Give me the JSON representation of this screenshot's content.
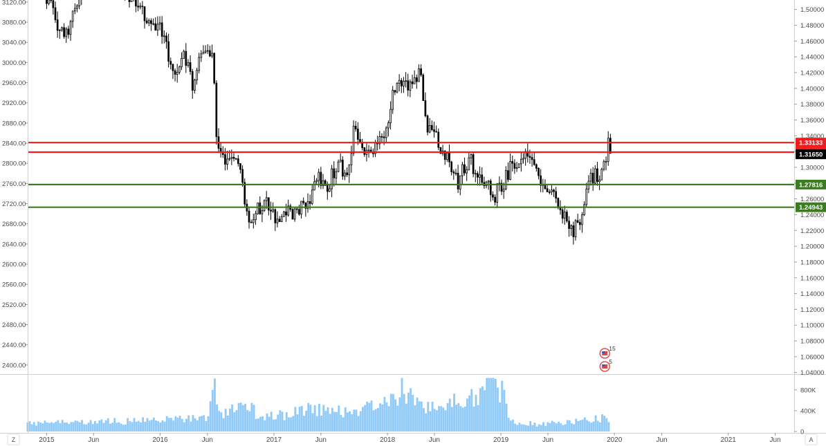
{
  "chart_data": {
    "type": "candlestick",
    "left_axis": {
      "ticks": [
        "3120.00",
        "3080.00",
        "3040.00",
        "3000.00",
        "2960.00",
        "2920.00",
        "2880.00",
        "2840.00",
        "2800.00",
        "2760.00",
        "2720.00",
        "2680.00",
        "2640.00",
        "2600.00",
        "2560.00",
        "2520.00",
        "2480.00",
        "2440.00",
        "2400.00"
      ],
      "range": [
        2382,
        3124
      ]
    },
    "right_axis": {
      "ticks": [
        "1.50000",
        "1.48000",
        "1.46000",
        "1.44000",
        "1.42000",
        "1.40000",
        "1.38000",
        "1.36000",
        "1.34000",
        "1.32000",
        "1.30000",
        "1.28000",
        "1.26000",
        "1.24000",
        "1.22000",
        "1.20000",
        "1.18000",
        "1.16000",
        "1.14000",
        "1.12000",
        "1.10000",
        "1.08000",
        "1.06000",
        "1.04000"
      ],
      "range": [
        1.038,
        1.512
      ]
    },
    "x_axis": {
      "range": [
        "2014-11-01",
        "2021-08-01"
      ],
      "ticks": [
        {
          "label": "2015",
          "date": "2015-01-01"
        },
        {
          "label": "Jun",
          "date": "2015-06-01"
        },
        {
          "label": "2016",
          "date": "2016-01-01"
        },
        {
          "label": "Jun",
          "date": "2016-06-01"
        },
        {
          "label": "2017",
          "date": "2017-01-01"
        },
        {
          "label": "Jun",
          "date": "2017-06-01"
        },
        {
          "label": "2018",
          "date": "2018-01-01"
        },
        {
          "label": "Jun",
          "date": "2018-06-01"
        },
        {
          "label": "2019",
          "date": "2019-01-01"
        },
        {
          "label": "Jun",
          "date": "2019-06-01"
        },
        {
          "label": "2020",
          "date": "2020-01-01"
        },
        {
          "label": "Jun",
          "date": "2020-06-01"
        },
        {
          "label": "2021",
          "date": "2021-01-01"
        },
        {
          "label": "Jun",
          "date": "2021-06-01"
        }
      ]
    },
    "price_path": [
      {
        "date": "2015-01-01",
        "close": 1.512
      },
      {
        "date": "2015-02-15",
        "close": 1.475
      },
      {
        "date": "2015-03-10",
        "close": 1.468
      },
      {
        "date": "2015-04-05",
        "close": 1.505
      },
      {
        "date": "2015-05-10",
        "close": 1.55
      },
      {
        "date": "2015-07-01",
        "close": 1.565
      },
      {
        "date": "2015-09-01",
        "close": 1.53
      },
      {
        "date": "2015-11-15",
        "close": 1.495
      },
      {
        "date": "2016-01-01",
        "close": 1.478
      },
      {
        "date": "2016-02-10",
        "close": 1.425
      },
      {
        "date": "2016-03-20",
        "close": 1.44
      },
      {
        "date": "2016-04-15",
        "close": 1.405
      },
      {
        "date": "2016-05-20",
        "close": 1.455
      },
      {
        "date": "2016-06-20",
        "close": 1.445
      },
      {
        "date": "2016-06-30",
        "close": 1.33
      },
      {
        "date": "2016-07-20",
        "close": 1.305
      },
      {
        "date": "2016-08-20",
        "close": 1.31
      },
      {
        "date": "2016-09-20",
        "close": 1.285
      },
      {
        "date": "2016-10-10",
        "close": 1.225
      },
      {
        "date": "2016-11-10",
        "close": 1.245
      },
      {
        "date": "2016-12-10",
        "close": 1.255
      },
      {
        "date": "2017-01-10",
        "close": 1.225
      },
      {
        "date": "2017-02-15",
        "close": 1.245
      },
      {
        "date": "2017-03-15",
        "close": 1.24
      },
      {
        "date": "2017-04-20",
        "close": 1.255
      },
      {
        "date": "2017-05-15",
        "close": 1.29
      },
      {
        "date": "2017-06-20",
        "close": 1.27
      },
      {
        "date": "2017-07-20",
        "close": 1.305
      },
      {
        "date": "2017-08-20",
        "close": 1.29
      },
      {
        "date": "2017-09-20",
        "close": 1.355
      },
      {
        "date": "2017-10-20",
        "close": 1.32
      },
      {
        "date": "2017-11-20",
        "close": 1.325
      },
      {
        "date": "2017-12-20",
        "close": 1.34
      },
      {
        "date": "2018-01-20",
        "close": 1.39
      },
      {
        "date": "2018-02-15",
        "close": 1.41
      },
      {
        "date": "2018-03-10",
        "close": 1.395
      },
      {
        "date": "2018-04-15",
        "close": 1.425
      },
      {
        "date": "2018-05-10",
        "close": 1.355
      },
      {
        "date": "2018-06-10",
        "close": 1.335
      },
      {
        "date": "2018-07-10",
        "close": 1.315
      },
      {
        "date": "2018-08-15",
        "close": 1.28
      },
      {
        "date": "2018-09-20",
        "close": 1.31
      },
      {
        "date": "2018-10-20",
        "close": 1.29
      },
      {
        "date": "2018-12-10",
        "close": 1.265
      },
      {
        "date": "2019-01-01",
        "close": 1.275
      },
      {
        "date": "2019-02-15",
        "close": 1.31
      },
      {
        "date": "2019-03-15",
        "close": 1.31
      },
      {
        "date": "2019-04-15",
        "close": 1.31
      },
      {
        "date": "2019-05-15",
        "close": 1.275
      },
      {
        "date": "2019-06-20",
        "close": 1.27
      },
      {
        "date": "2019-07-20",
        "close": 1.24
      },
      {
        "date": "2019-08-10",
        "close": 1.215
      },
      {
        "date": "2019-09-10",
        "close": 1.235
      },
      {
        "date": "2019-10-15",
        "close": 1.29
      },
      {
        "date": "2019-11-15",
        "close": 1.285
      },
      {
        "date": "2019-12-05",
        "close": 1.31
      },
      {
        "date": "2019-12-13",
        "close": 1.34
      },
      {
        "date": "2019-12-20",
        "close": 1.3165
      }
    ],
    "horizontal_lines": [
      {
        "value": 1.33133,
        "label": "1.33133",
        "color": "#f21c1c"
      },
      {
        "value": 1.31922,
        "label": "1.31922",
        "color": "#f21c1c"
      },
      {
        "value": 1.27816,
        "label": "1.27816",
        "color": "#3a7d1e"
      },
      {
        "value": 1.24943,
        "label": "1.24943",
        "color": "#3a7d1e"
      }
    ],
    "last_price": {
      "value": 1.3165,
      "label": "1.31650",
      "color": "#000000"
    },
    "volume": {
      "axis_ticks": [
        {
          "label": "800K",
          "value": 800000
        },
        {
          "label": "400K",
          "value": 400000
        },
        {
          "label": "0",
          "value": 0
        }
      ],
      "max": 1050000,
      "color": "#90caf9",
      "profile": [
        {
          "date": "2014-11-01",
          "value": 150000
        },
        {
          "date": "2015-06-01",
          "value": 180000
        },
        {
          "date": "2016-06-01",
          "value": 250000
        },
        {
          "date": "2016-06-25",
          "value": 780000
        },
        {
          "date": "2016-07-15",
          "value": 330000
        },
        {
          "date": "2016-10-10",
          "value": 480000
        },
        {
          "date": "2016-11-20",
          "value": 270000
        },
        {
          "date": "2017-03-01",
          "value": 330000
        },
        {
          "date": "2017-04-15",
          "value": 460000
        },
        {
          "date": "2017-07-15",
          "value": 370000
        },
        {
          "date": "2017-10-15",
          "value": 440000
        },
        {
          "date": "2018-01-15",
          "value": 560000
        },
        {
          "date": "2018-02-15",
          "value": 820000
        },
        {
          "date": "2018-03-15",
          "value": 620000
        },
        {
          "date": "2018-06-01",
          "value": 480000
        },
        {
          "date": "2018-09-01",
          "value": 570000
        },
        {
          "date": "2018-11-10",
          "value": 800000
        },
        {
          "date": "2018-11-25",
          "value": 1000000
        },
        {
          "date": "2019-01-10",
          "value": 750000
        },
        {
          "date": "2019-01-25",
          "value": 200000
        },
        {
          "date": "2019-05-01",
          "value": 140000
        },
        {
          "date": "2019-09-01",
          "value": 190000
        },
        {
          "date": "2019-12-10",
          "value": 280000
        },
        {
          "date": "2019-12-20",
          "value": 60000
        }
      ]
    },
    "events": [
      {
        "date": "2019-12-01",
        "label": "15"
      },
      {
        "date": "2019-12-01",
        "label": "5"
      }
    ]
  },
  "controls": {
    "left_button": "Z",
    "right_button": "A"
  }
}
